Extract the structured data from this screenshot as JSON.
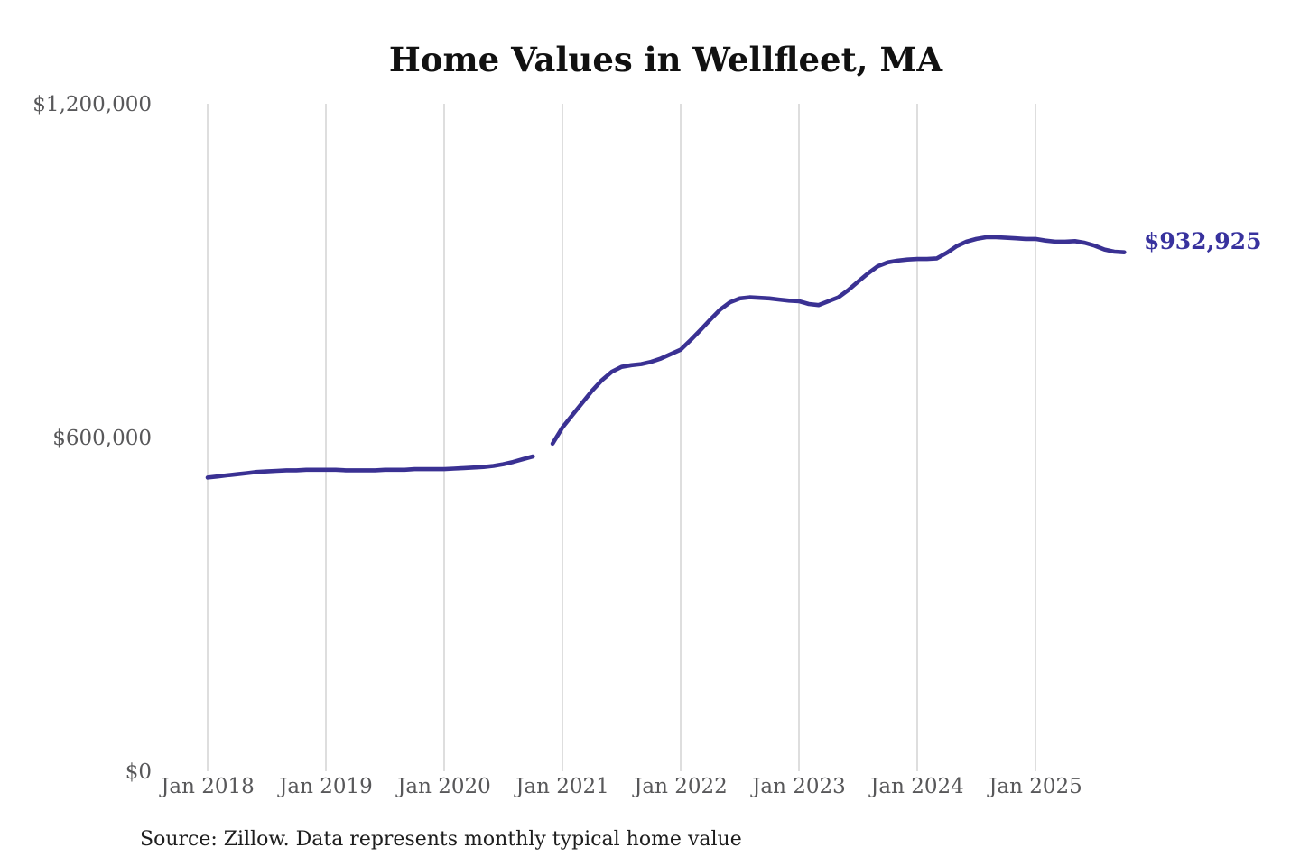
{
  "title": "Home Values in Wellfleet, MA",
  "end_value_label": "$932,925",
  "source_note": "Source: Zillow. Data represents monthly typical home value",
  "colors": {
    "line": "#3a3193",
    "end_label": "#38329e",
    "grid": "#c9c9c9",
    "axis_text": "#58585a",
    "title_text": "#111111"
  },
  "chart_data": {
    "type": "line",
    "title": "Home Values in Wellfleet, MA",
    "source": "Source: Zillow. Data represents monthly typical home value",
    "xlabel": "",
    "ylabel": "",
    "ylim": [
      0,
      1200000
    ],
    "grid": "vertical-only",
    "legend": "none",
    "x_ticks": [
      "Jan 2018",
      "Jan 2019",
      "Jan 2020",
      "Jan 2021",
      "Jan 2022",
      "Jan 2023",
      "Jan 2024",
      "Jan 2025"
    ],
    "y_ticks": [
      {
        "label": "$0",
        "value": 0
      },
      {
        "label": "$600,000",
        "value": 600000
      },
      {
        "label": "$1,200,000",
        "value": 1200000
      }
    ],
    "series": [
      {
        "name": "Monthly typical home value",
        "frequency": "monthly",
        "start_month": "Jan 2018",
        "end_month": "Oct 2025",
        "gap_months": [
          "Nov 2020"
        ],
        "end_value": 932925,
        "end_value_label": "$932,925",
        "values": [
          528000,
          530000,
          532000,
          534000,
          536000,
          538000,
          539000,
          540000,
          541000,
          541000,
          542000,
          542000,
          542000,
          542000,
          541000,
          541000,
          541000,
          541000,
          542000,
          542000,
          542000,
          543000,
          543000,
          543000,
          543000,
          544000,
          545000,
          546000,
          547000,
          549000,
          552000,
          556000,
          561000,
          566000,
          null,
          589000,
          618000,
          640000,
          662000,
          684000,
          703000,
          718000,
          727000,
          730000,
          732000,
          736000,
          742000,
          750000,
          758000,
          775000,
          793000,
          812000,
          830000,
          843000,
          850000,
          852000,
          851000,
          850000,
          848000,
          846000,
          845000,
          840000,
          838000,
          845000,
          852000,
          865000,
          880000,
          895000,
          908000,
          915000,
          918000,
          920000,
          921000,
          921000,
          922000,
          932000,
          944000,
          952000,
          957000,
          960000,
          960000,
          959000,
          958000,
          957000,
          957000,
          954000,
          952000,
          952000,
          953000,
          950000,
          945000,
          938000,
          934000,
          932925
        ]
      }
    ]
  }
}
